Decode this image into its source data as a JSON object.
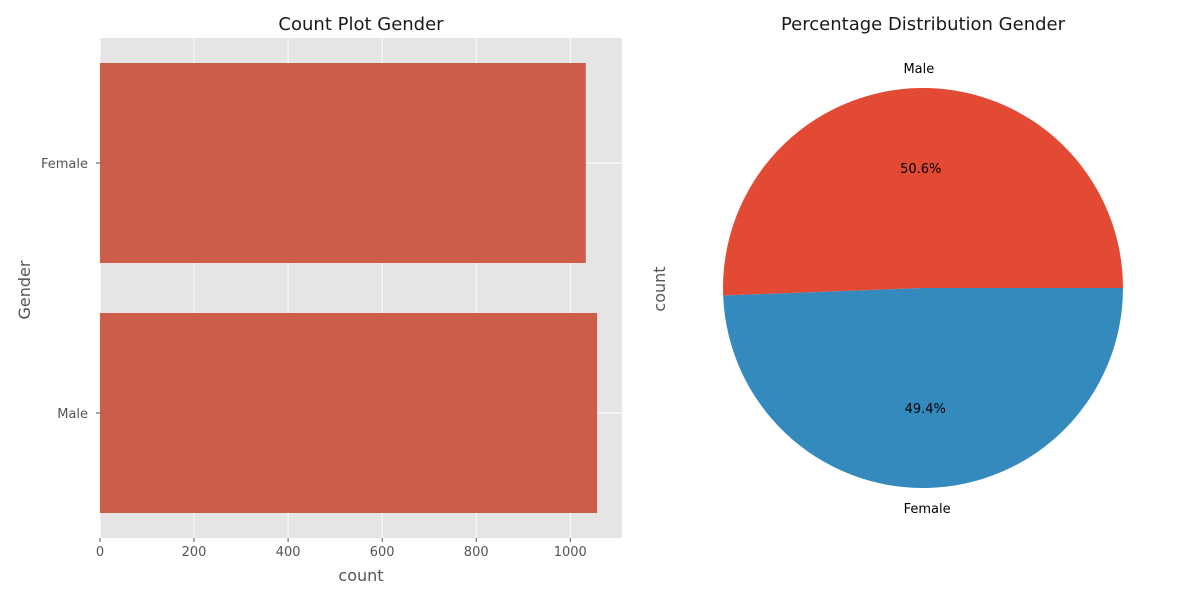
{
  "chart_data": [
    {
      "type": "bar",
      "orientation": "horizontal",
      "title": "Count Plot Gender",
      "xlabel": "count",
      "ylabel": "Gender",
      "categories": [
        "Female",
        "Male"
      ],
      "values": [
        1033,
        1057
      ],
      "xlim": [
        0,
        1110
      ],
      "xticks": [
        0,
        200,
        400,
        600,
        800,
        1000
      ],
      "grid": true,
      "color": "#cd5c4a",
      "background": "#e5e5e5"
    },
    {
      "type": "pie",
      "title": "Percentage Distribution Gender",
      "ylabel": "count",
      "labels": [
        "Male",
        "Female"
      ],
      "values": [
        50.6,
        49.4
      ],
      "autopct": [
        "50.6%",
        "49.4%"
      ],
      "colors": [
        "#e24a33",
        "#348abd"
      ]
    }
  ]
}
